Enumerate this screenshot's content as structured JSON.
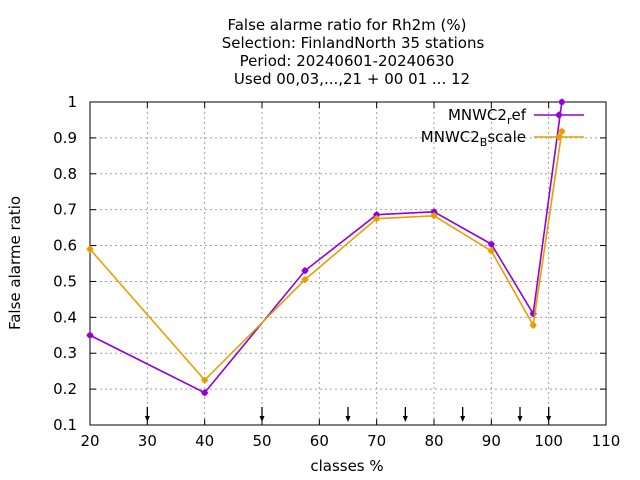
{
  "chart_data": {
    "type": "line",
    "title_lines": [
      "False alarme ratio  for Rh2m (%)",
      "Selection: FinlandNorth     35 stations",
      "Period: 20240601-20240630",
      "Used 00,03,...,21 + 00 01 ... 12"
    ],
    "xlabel": "classes %",
    "ylabel": "False alarme ratio",
    "xlim": [
      20,
      110
    ],
    "ylim": [
      0.1,
      1.0
    ],
    "x_ticks": [
      20,
      30,
      40,
      50,
      60,
      70,
      80,
      90,
      100,
      110
    ],
    "y_ticks": [
      0.1,
      0.2,
      0.3,
      0.4,
      0.5,
      0.6,
      0.7,
      0.8,
      0.9,
      1
    ],
    "y_tick_labels": [
      "0.1",
      "0.2",
      "0.3",
      "0.4",
      "0.5",
      "0.6",
      "0.7",
      "0.8",
      "0.9",
      "1"
    ],
    "grid": true,
    "legend_position": "top-right",
    "arrow_markers_x": [
      30,
      50,
      65,
      75,
      85,
      95,
      100
    ],
    "series": [
      {
        "name": "MNWC2_ref",
        "legend_main": "MNWC2",
        "legend_sub": "r",
        "legend_rest": "ef",
        "color": "#9400d3",
        "x": [
          20,
          40,
          57.5,
          70,
          80,
          90,
          97.3,
          102.3
        ],
        "y": [
          0.35,
          0.19,
          0.53,
          0.686,
          0.694,
          0.604,
          0.41,
          1.0
        ]
      },
      {
        "name": "MNWC2_Bscale",
        "legend_main": "MNWC2",
        "legend_sub": "B",
        "legend_rest": "scale",
        "color": "#e69f00",
        "x": [
          20,
          40,
          57.5,
          70,
          80,
          90,
          97.3,
          102.3
        ],
        "y": [
          0.59,
          0.225,
          0.505,
          0.675,
          0.683,
          0.585,
          0.378,
          0.918
        ]
      }
    ]
  }
}
